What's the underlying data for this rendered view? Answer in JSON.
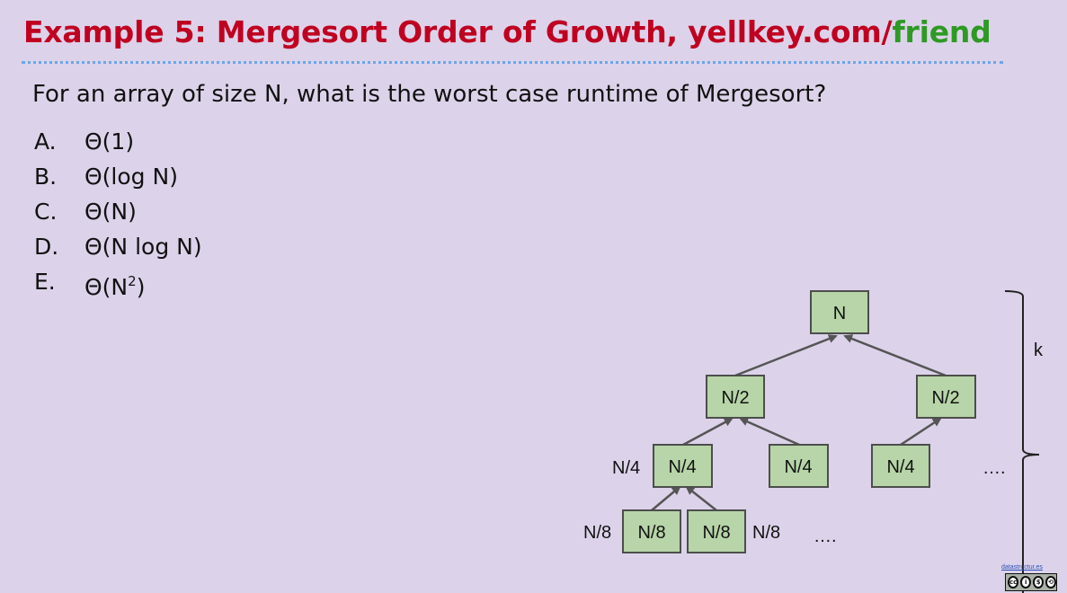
{
  "title": {
    "red_text": "Example 5: Mergesort Order of Growth, yellkey.com/",
    "green_text": "friend"
  },
  "question": "For an array of size N, what is the worst case runtime of Mergesort?",
  "options": [
    {
      "letter": "A.",
      "text": "Θ(1)",
      "sup": ""
    },
    {
      "letter": "B.",
      "text": "Θ(log N)",
      "sup": ""
    },
    {
      "letter": "C.",
      "text": "Θ(N)",
      "sup": ""
    },
    {
      "letter": "D.",
      "text": "Θ(N log N)",
      "sup": ""
    },
    {
      "letter": "E.",
      "text": "Θ(N",
      "sup": "2",
      "suffix": ")"
    }
  ],
  "tree": {
    "root": "N",
    "level1": [
      "N/2",
      "N/2"
    ],
    "level2": [
      "N/4",
      "N/4",
      "N/4"
    ],
    "level2_side": "N/4",
    "level3": [
      "N/8",
      "N/8"
    ],
    "level3_side_left": "N/8",
    "level3_side_right": "N/8",
    "ellipsis_row2": "….",
    "ellipsis_row3": "….",
    "height_label": "k"
  },
  "footer": {
    "link_text": "datastructur.es",
    "license_icon": "cc-by-nc-sa-icon"
  },
  "colors": {
    "background": "#dcd3ea",
    "title_red": "#c00020",
    "title_green": "#2e9a24",
    "node_fill": "#b7d5a8",
    "rule": "#6ea6e6"
  }
}
